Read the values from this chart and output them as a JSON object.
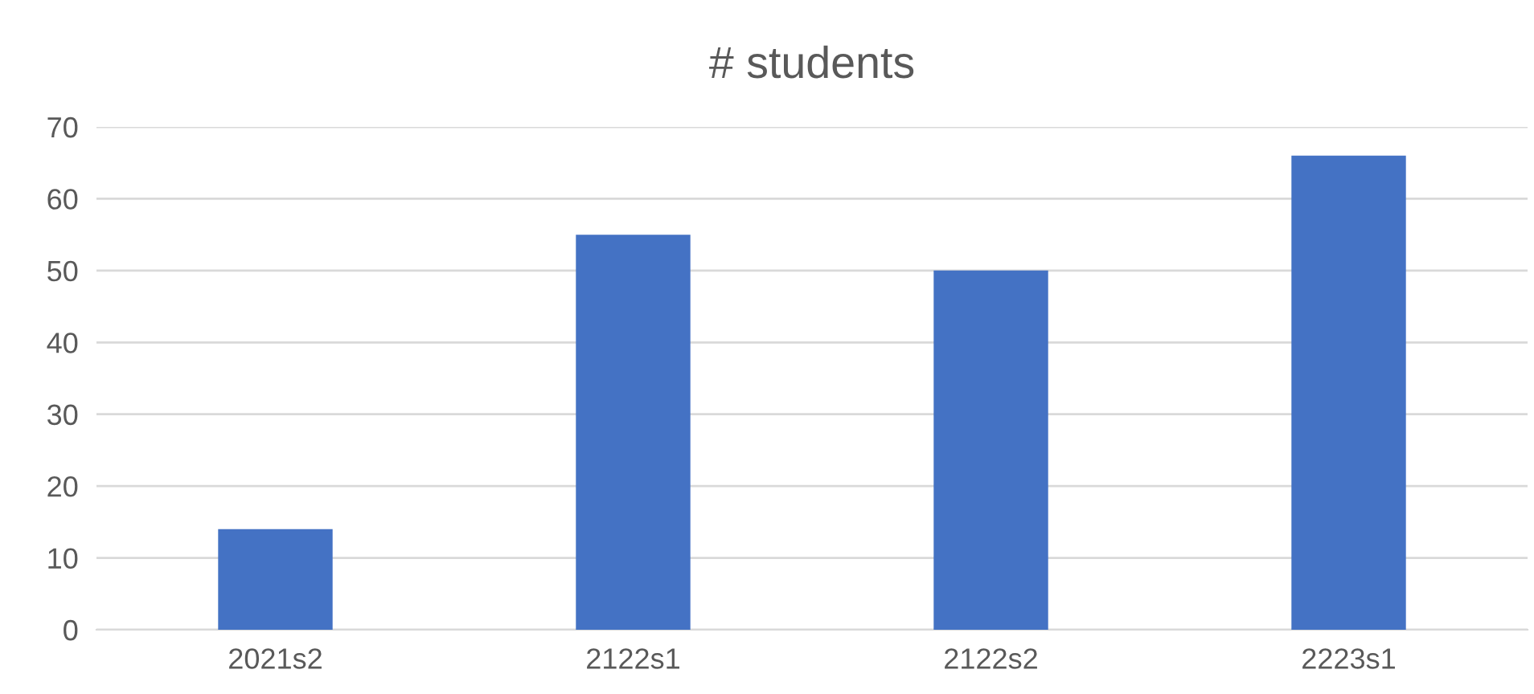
{
  "chart_data": {
    "type": "bar",
    "title": "# students",
    "categories": [
      "2021s2",
      "2122s1",
      "2122s2",
      "2223s1"
    ],
    "values": [
      14,
      55,
      50,
      66
    ],
    "color": "#4472c4",
    "ylim": [
      0,
      70
    ],
    "yticks": [
      0,
      10,
      20,
      30,
      40,
      50,
      60,
      70
    ],
    "grid": "y"
  }
}
